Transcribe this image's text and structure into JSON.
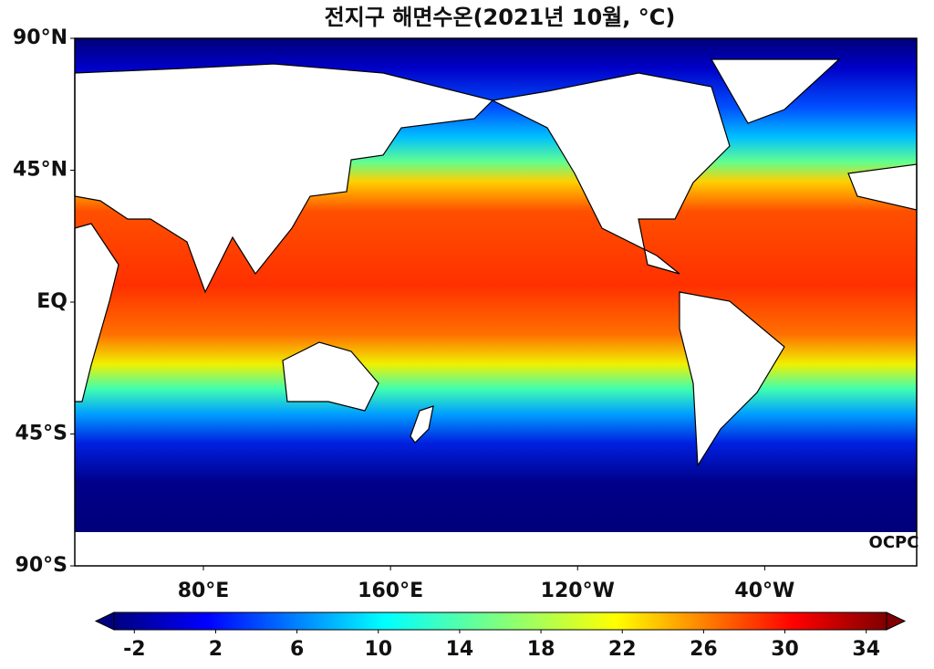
{
  "map": {
    "title": "전지구 해면수온(2021년 10월, °C)",
    "lat_ticks": [
      {
        "value": 90,
        "label": "90°N"
      },
      {
        "value": 45,
        "label": "45°N"
      },
      {
        "value": 0,
        "label": "EQ"
      },
      {
        "value": -45,
        "label": "45°S"
      },
      {
        "value": -90,
        "label": "90°S"
      }
    ],
    "lon_ticks": [
      {
        "value": 80,
        "label": "80°E"
      },
      {
        "value": 160,
        "label": "160°E"
      },
      {
        "value": -120,
        "label": "120°W"
      },
      {
        "value": -40,
        "label": "40°W"
      }
    ],
    "colorbar": {
      "lim": [
        -3,
        35
      ],
      "ticks": [
        -2,
        2,
        6,
        10,
        14,
        18,
        22,
        26,
        30,
        34
      ],
      "colormap": "jet"
    },
    "credit": "OCPC"
  }
}
